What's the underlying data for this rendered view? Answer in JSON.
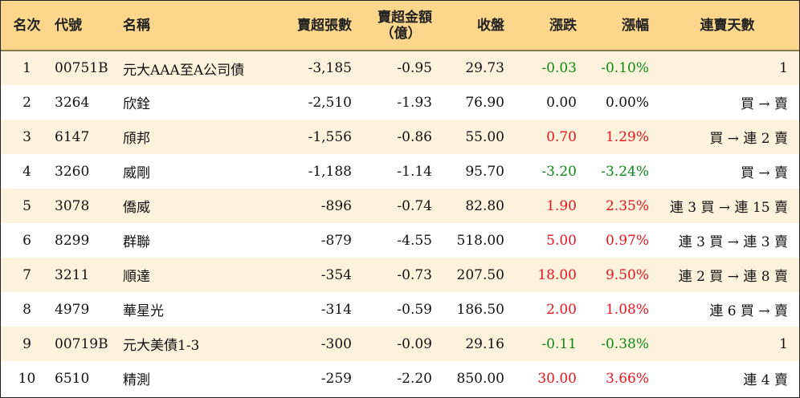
{
  "header": {
    "rank": "名次",
    "code": "代號",
    "name": "名稱",
    "net_sell_volume": "賣超張數",
    "net_sell_amount_line1": "賣超金額",
    "net_sell_amount_line2": "（億）",
    "close": "收盤",
    "change": "漲跌",
    "change_pct": "漲幅",
    "streak": "連賣天數"
  },
  "colors": {
    "header_bg": "#fbd68b",
    "odd_row_bg": "#fdf2dc",
    "up": "#e8141e",
    "down": "#0b8a16"
  },
  "rows": [
    {
      "rank": "1",
      "code": "00751B",
      "name": "元大AAA至A公司債",
      "volume": "-3,185",
      "amount": "-0.95",
      "close": "29.73",
      "change": "-0.03",
      "pct": "-0.10%",
      "dir": "down",
      "streak": "1"
    },
    {
      "rank": "2",
      "code": "3264",
      "name": "欣銓",
      "volume": "-2,510",
      "amount": "-1.93",
      "close": "76.90",
      "change": "0.00",
      "pct": "0.00%",
      "dir": "flat",
      "streak": "買 → 賣"
    },
    {
      "rank": "3",
      "code": "6147",
      "name": "頎邦",
      "volume": "-1,556",
      "amount": "-0.86",
      "close": "55.00",
      "change": "0.70",
      "pct": "1.29%",
      "dir": "up",
      "streak": "買 → 連 2 賣"
    },
    {
      "rank": "4",
      "code": "3260",
      "name": "威剛",
      "volume": "-1,188",
      "amount": "-1.14",
      "close": "95.70",
      "change": "-3.20",
      "pct": "-3.24%",
      "dir": "down",
      "streak": "買 → 賣"
    },
    {
      "rank": "5",
      "code": "3078",
      "name": "僑威",
      "volume": "-896",
      "amount": "-0.74",
      "close": "82.80",
      "change": "1.90",
      "pct": "2.35%",
      "dir": "up",
      "streak": "連 3 買 → 連 15 賣"
    },
    {
      "rank": "6",
      "code": "8299",
      "name": "群聯",
      "volume": "-879",
      "amount": "-4.55",
      "close": "518.00",
      "change": "5.00",
      "pct": "0.97%",
      "dir": "up",
      "streak": "連 3 買 → 連 3 賣"
    },
    {
      "rank": "7",
      "code": "3211",
      "name": "順達",
      "volume": "-354",
      "amount": "-0.73",
      "close": "207.50",
      "change": "18.00",
      "pct": "9.50%",
      "dir": "up",
      "streak": "連 2 買 → 連 8 賣"
    },
    {
      "rank": "8",
      "code": "4979",
      "name": "華星光",
      "volume": "-314",
      "amount": "-0.59",
      "close": "186.50",
      "change": "2.00",
      "pct": "1.08%",
      "dir": "up",
      "streak": "連 6 買 → 賣"
    },
    {
      "rank": "9",
      "code": "00719B",
      "name": "元大美債1-3",
      "volume": "-300",
      "amount": "-0.09",
      "close": "29.16",
      "change": "-0.11",
      "pct": "-0.38%",
      "dir": "down",
      "streak": "1"
    },
    {
      "rank": "10",
      "code": "6510",
      "name": "精測",
      "volume": "-259",
      "amount": "-2.20",
      "close": "850.00",
      "change": "30.00",
      "pct": "3.66%",
      "dir": "up",
      "streak": "連 4 賣"
    }
  ]
}
